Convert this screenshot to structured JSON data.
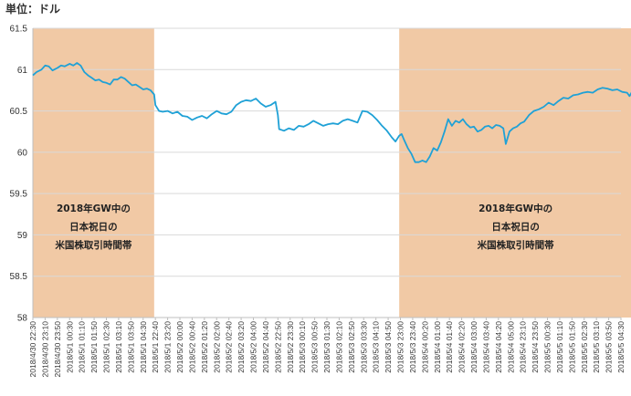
{
  "unit_label": "単位：ドル",
  "chart_data": {
    "type": "line",
    "title": "",
    "ylim": [
      58,
      61.5
    ],
    "y_ticks": [
      58,
      58.5,
      59,
      59.5,
      60,
      60.5,
      61,
      61.5
    ],
    "grid": true,
    "x_tick_labels": [
      "2018/4/30 22:30",
      "2018/4/30 23:10",
      "2018/4/30 23:50",
      "2018/5/1 00:30",
      "2018/5/1 01:10",
      "2018/5/1 01:50",
      "2018/5/1 02:30",
      "2018/5/1 03:10",
      "2018/5/1 03:50",
      "2018/5/1 04:30",
      "2018/5/1 22:40",
      "2018/5/1 23:20",
      "2018/5/2 00:00",
      "2018/5/2 00:40",
      "2018/5/2 01:20",
      "2018/5/2 02:00",
      "2018/5/2 02:40",
      "2018/5/2 03:20",
      "2018/5/2 04:00",
      "2018/5/2 04:40",
      "2018/5/2 22:50",
      "2018/5/2 23:30",
      "2018/5/3 00:10",
      "2018/5/3 00:50",
      "2018/5/3 01:30",
      "2018/5/3 02:10",
      "2018/5/3 02:50",
      "2018/5/3 03:30",
      "2018/5/3 04:10",
      "2018/5/3 04:50",
      "2018/5/3 23:00",
      "2018/5/3 23:40",
      "2018/5/4 00:20",
      "2018/5/4 01:00",
      "2018/5/4 01:40",
      "2018/5/4 02:20",
      "2018/5/4 03:00",
      "2018/5/4 03:40",
      "2018/5/4 04:20",
      "2018/5/4 05:00",
      "2018/5/4 23:10",
      "2018/5/4 23:50",
      "2018/5/5 00:30",
      "2018/5/5 01:10",
      "2018/5/5 01:50",
      "2018/5/5 02:30",
      "2018/5/5 03:10",
      "2018/5/5 03:50",
      "2018/5/5 04:30"
    ],
    "shaded_ranges": [
      {
        "from": 0,
        "to": 9.9,
        "label": [
          "2018年GW中の",
          "日本祝日の",
          "米国株取引時間帯"
        ]
      },
      {
        "from": 29.9,
        "to": 48.9,
        "label": [
          "2018年GW中の",
          "日本祝日の",
          "米国株取引時間帯"
        ]
      }
    ],
    "series": [
      {
        "color": "#1fa1d6",
        "points": [
          [
            0,
            60.93
          ],
          [
            0.3,
            60.97
          ],
          [
            0.7,
            61.0
          ],
          [
            1.0,
            61.05
          ],
          [
            1.3,
            61.04
          ],
          [
            1.6,
            60.99
          ],
          [
            2.0,
            61.02
          ],
          [
            2.3,
            61.05
          ],
          [
            2.6,
            61.04
          ],
          [
            3.0,
            61.07
          ],
          [
            3.3,
            61.05
          ],
          [
            3.6,
            61.08
          ],
          [
            3.9,
            61.05
          ],
          [
            4.2,
            60.97
          ],
          [
            4.5,
            60.93
          ],
          [
            4.8,
            60.9
          ],
          [
            5.1,
            60.87
          ],
          [
            5.4,
            60.88
          ],
          [
            5.7,
            60.85
          ],
          [
            6.0,
            60.84
          ],
          [
            6.3,
            60.82
          ],
          [
            6.6,
            60.88
          ],
          [
            6.9,
            60.88
          ],
          [
            7.2,
            60.91
          ],
          [
            7.5,
            60.89
          ],
          [
            7.8,
            60.85
          ],
          [
            8.1,
            60.81
          ],
          [
            8.4,
            60.82
          ],
          [
            8.7,
            60.79
          ],
          [
            9.0,
            60.76
          ],
          [
            9.3,
            60.77
          ],
          [
            9.6,
            60.75
          ],
          [
            9.9,
            60.7
          ],
          [
            10.0,
            60.57
          ],
          [
            10.3,
            60.5
          ],
          [
            10.6,
            60.49
          ],
          [
            11.0,
            60.5
          ],
          [
            11.4,
            60.47
          ],
          [
            11.8,
            60.49
          ],
          [
            12.2,
            60.44
          ],
          [
            12.6,
            60.43
          ],
          [
            13.0,
            60.39
          ],
          [
            13.4,
            60.42
          ],
          [
            13.8,
            60.44
          ],
          [
            14.2,
            60.41
          ],
          [
            14.6,
            60.46
          ],
          [
            15.0,
            60.5
          ],
          [
            15.4,
            60.47
          ],
          [
            15.8,
            60.46
          ],
          [
            16.2,
            60.49
          ],
          [
            16.6,
            60.57
          ],
          [
            17.0,
            60.61
          ],
          [
            17.4,
            60.63
          ],
          [
            17.8,
            60.62
          ],
          [
            18.2,
            60.65
          ],
          [
            18.6,
            60.59
          ],
          [
            19.0,
            60.55
          ],
          [
            19.4,
            60.57
          ],
          [
            19.8,
            60.61
          ],
          [
            20.0,
            60.45
          ],
          [
            20.1,
            60.28
          ],
          [
            20.5,
            60.26
          ],
          [
            20.9,
            60.29
          ],
          [
            21.3,
            60.27
          ],
          [
            21.7,
            60.32
          ],
          [
            22.1,
            60.31
          ],
          [
            22.5,
            60.34
          ],
          [
            22.9,
            60.38
          ],
          [
            23.3,
            60.35
          ],
          [
            23.7,
            60.32
          ],
          [
            24.1,
            60.34
          ],
          [
            24.5,
            60.35
          ],
          [
            24.9,
            60.34
          ],
          [
            25.3,
            60.38
          ],
          [
            25.7,
            60.4
          ],
          [
            26.1,
            60.38
          ],
          [
            26.5,
            60.36
          ],
          [
            26.9,
            60.5
          ],
          [
            27.3,
            60.49
          ],
          [
            27.7,
            60.45
          ],
          [
            28.1,
            60.39
          ],
          [
            28.5,
            60.32
          ],
          [
            28.9,
            60.26
          ],
          [
            29.3,
            60.18
          ],
          [
            29.6,
            60.13
          ],
          [
            29.9,
            60.2
          ],
          [
            30.1,
            60.22
          ],
          [
            30.3,
            60.15
          ],
          [
            30.6,
            60.05
          ],
          [
            30.9,
            59.98
          ],
          [
            31.2,
            59.88
          ],
          [
            31.5,
            59.88
          ],
          [
            31.8,
            59.9
          ],
          [
            32.1,
            59.88
          ],
          [
            32.4,
            59.95
          ],
          [
            32.7,
            60.05
          ],
          [
            33.0,
            60.02
          ],
          [
            33.3,
            60.12
          ],
          [
            33.6,
            60.25
          ],
          [
            33.9,
            60.4
          ],
          [
            34.2,
            60.32
          ],
          [
            34.5,
            60.38
          ],
          [
            34.8,
            60.36
          ],
          [
            35.1,
            60.4
          ],
          [
            35.4,
            60.34
          ],
          [
            35.7,
            60.3
          ],
          [
            36.0,
            60.31
          ],
          [
            36.3,
            60.25
          ],
          [
            36.6,
            60.27
          ],
          [
            36.9,
            60.31
          ],
          [
            37.2,
            60.32
          ],
          [
            37.5,
            60.29
          ],
          [
            37.8,
            60.33
          ],
          [
            38.1,
            60.32
          ],
          [
            38.4,
            60.29
          ],
          [
            38.6,
            60.1
          ],
          [
            38.9,
            60.25
          ],
          [
            39.2,
            60.29
          ],
          [
            39.5,
            60.31
          ],
          [
            39.8,
            60.35
          ],
          [
            40.1,
            60.37
          ],
          [
            40.5,
            60.45
          ],
          [
            40.9,
            60.5
          ],
          [
            41.3,
            60.52
          ],
          [
            41.7,
            60.55
          ],
          [
            42.1,
            60.6
          ],
          [
            42.5,
            60.57
          ],
          [
            42.9,
            60.62
          ],
          [
            43.3,
            60.66
          ],
          [
            43.7,
            60.65
          ],
          [
            44.1,
            60.69
          ],
          [
            44.5,
            60.7
          ],
          [
            44.9,
            60.72
          ],
          [
            45.3,
            60.73
          ],
          [
            45.7,
            60.72
          ],
          [
            46.1,
            60.76
          ],
          [
            46.5,
            60.78
          ],
          [
            46.9,
            60.77
          ],
          [
            47.3,
            60.75
          ],
          [
            47.7,
            60.76
          ],
          [
            48.1,
            60.73
          ],
          [
            48.5,
            60.72
          ],
          [
            48.7,
            60.68
          ],
          [
            48.9,
            60.73
          ]
        ]
      }
    ]
  }
}
